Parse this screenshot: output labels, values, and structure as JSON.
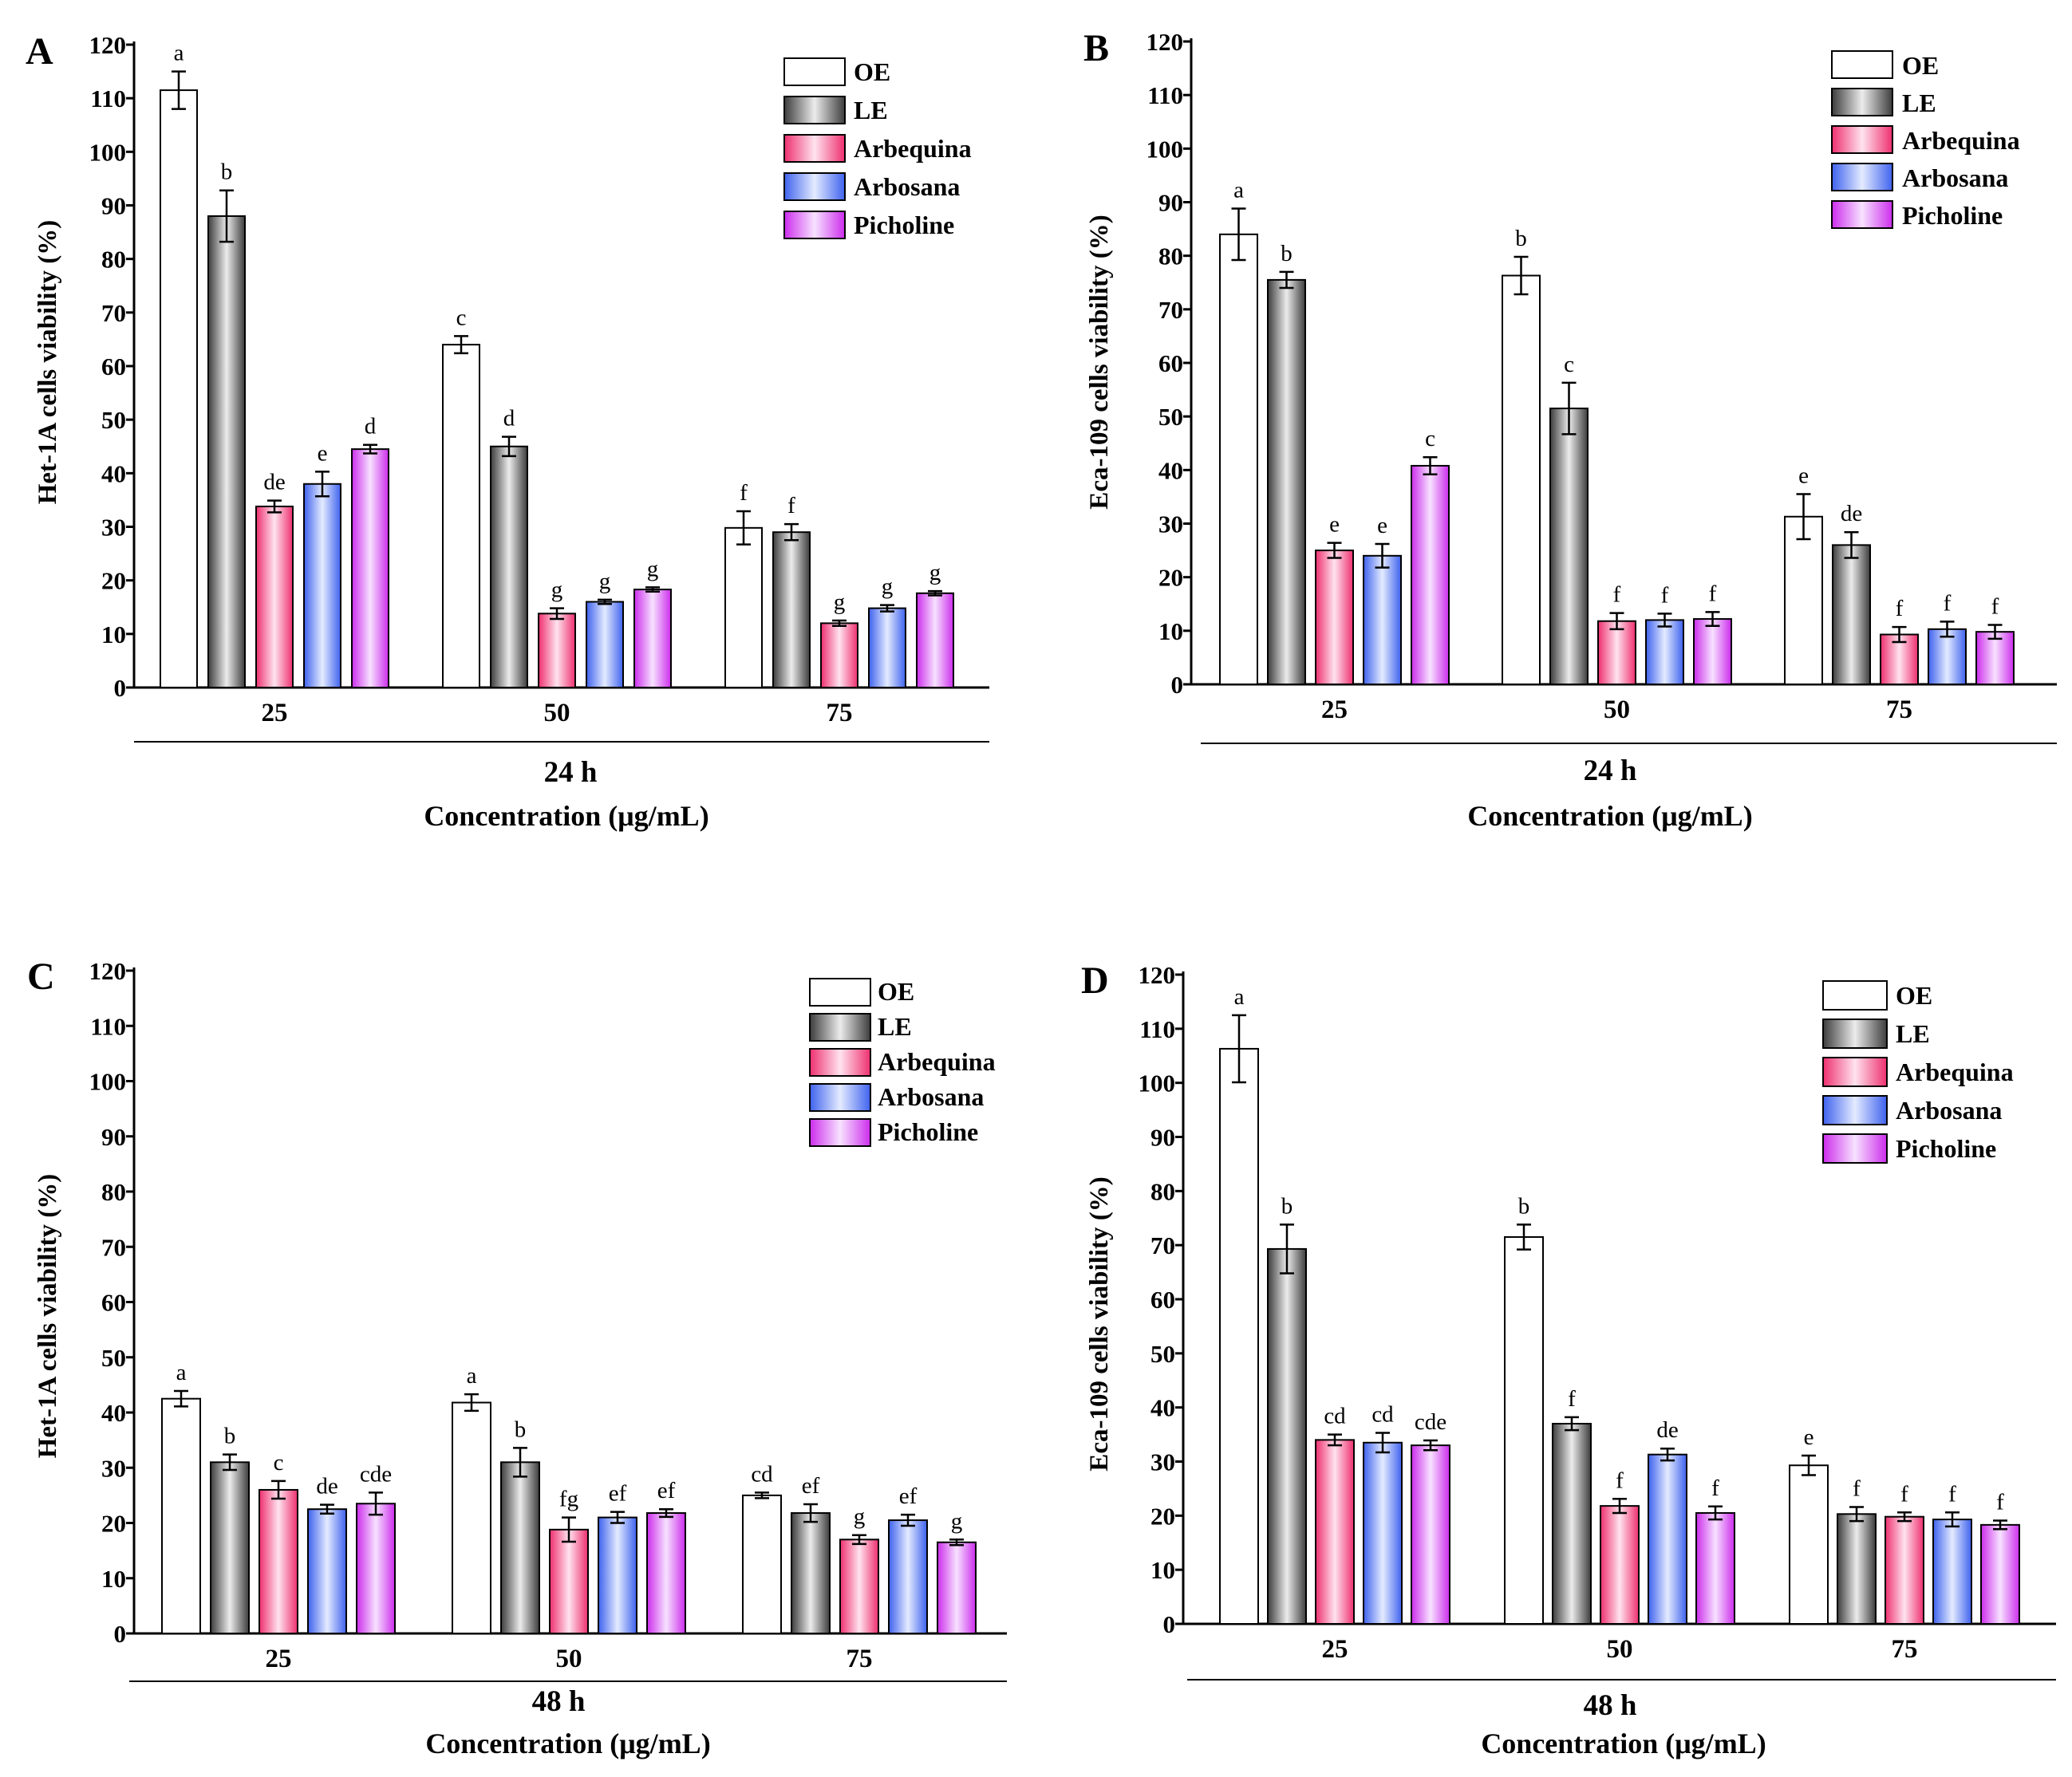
{
  "series_names": [
    "OE",
    "LE",
    "Arbequina",
    "Arbosana",
    "Picholine"
  ],
  "series_colors": {
    "OE": {
      "dark": "#ffffff",
      "light": "#ffffff"
    },
    "LE": {
      "dark": "#3c3c3c",
      "light": "#ececec"
    },
    "Arbequina": {
      "dark": "#ee2f6f",
      "light": "#ffe3ee"
    },
    "Arbosana": {
      "dark": "#3e62ee",
      "light": "#e4ebff"
    },
    "Picholine": {
      "dark": "#cc2cec",
      "light": "#f7e2ff"
    }
  },
  "chart_data": [
    {
      "panel": "A",
      "type": "bar",
      "ylabel": "Het-1A cells viability (%)",
      "time_label": "24 h",
      "xlabel": "Concentration (μg/mL)",
      "ylim": [
        0,
        120
      ],
      "yticks": [
        0,
        10,
        20,
        30,
        40,
        50,
        60,
        70,
        80,
        90,
        100,
        110,
        120
      ],
      "categories": [
        "25",
        "50",
        "75"
      ],
      "series": [
        {
          "name": "OE",
          "values": [
            111.5,
            64,
            29.8
          ],
          "errors": [
            3.5,
            1.6,
            3.1
          ],
          "letters": [
            "a",
            "c",
            "f"
          ]
        },
        {
          "name": "LE",
          "values": [
            88,
            45,
            29
          ],
          "errors": [
            4.8,
            1.8,
            1.5
          ],
          "letters": [
            "b",
            "d",
            "f"
          ]
        },
        {
          "name": "Arbequina",
          "values": [
            33.8,
            13.8,
            12
          ],
          "errors": [
            1.1,
            1.0,
            0.5
          ],
          "letters": [
            "de",
            "g",
            "g"
          ]
        },
        {
          "name": "Arbosana",
          "values": [
            38,
            16,
            14.8
          ],
          "errors": [
            2.3,
            0.4,
            0.6
          ],
          "letters": [
            "e",
            "g",
            "g"
          ]
        },
        {
          "name": "Picholine",
          "values": [
            44.5,
            18.3,
            17.6
          ],
          "errors": [
            0.8,
            0.4,
            0.4
          ],
          "letters": [
            "d",
            "g",
            "g"
          ]
        }
      ]
    },
    {
      "panel": "B",
      "type": "bar",
      "ylabel": "Eca-109 cells viability (%)",
      "time_label": "24 h",
      "xlabel": "Concentration (μg/mL)",
      "ylim": [
        0,
        120
      ],
      "yticks": [
        0,
        10,
        20,
        30,
        40,
        50,
        60,
        70,
        80,
        90,
        100,
        110,
        120
      ],
      "categories": [
        "25",
        "50",
        "75"
      ],
      "series": [
        {
          "name": "OE",
          "values": [
            84,
            76.3,
            31.3
          ],
          "errors": [
            4.8,
            3.5,
            4.2
          ],
          "letters": [
            "a",
            "b",
            "e"
          ]
        },
        {
          "name": "LE",
          "values": [
            75.5,
            51.5,
            26
          ],
          "errors": [
            1.5,
            4.8,
            2.4
          ],
          "letters": [
            "b",
            "c",
            "de"
          ]
        },
        {
          "name": "Arbequina",
          "values": [
            25,
            11.8,
            9.3
          ],
          "errors": [
            1.4,
            1.5,
            1.4
          ],
          "letters": [
            "e",
            "f",
            "f"
          ]
        },
        {
          "name": "Arbosana",
          "values": [
            24,
            12,
            10.3
          ],
          "errors": [
            2.2,
            1.2,
            1.4
          ],
          "letters": [
            "e",
            "f",
            "f"
          ]
        },
        {
          "name": "Picholine",
          "values": [
            40.8,
            12.2,
            9.8
          ],
          "errors": [
            1.6,
            1.3,
            1.3
          ],
          "letters": [
            "c",
            "f",
            "f"
          ]
        }
      ]
    },
    {
      "panel": "C",
      "type": "bar",
      "ylabel": "Het-1A cells viability (%)",
      "time_label": "48 h",
      "xlabel": "Concentration (μg/mL)",
      "ylim": [
        0,
        120
      ],
      "yticks": [
        0,
        10,
        20,
        30,
        40,
        50,
        60,
        70,
        80,
        90,
        100,
        110,
        120
      ],
      "categories": [
        "25",
        "50",
        "75"
      ],
      "series": [
        {
          "name": "OE",
          "values": [
            42.5,
            41.8,
            25
          ],
          "errors": [
            1.4,
            1.5,
            0.5
          ],
          "letters": [
            "a",
            "a",
            "cd"
          ]
        },
        {
          "name": "LE",
          "values": [
            31,
            31,
            21.8
          ],
          "errors": [
            1.4,
            2.6,
            1.6
          ],
          "letters": [
            "b",
            "b",
            "ef"
          ]
        },
        {
          "name": "Arbequina",
          "values": [
            26,
            18.8,
            17
          ],
          "errors": [
            1.6,
            2.2,
            0.8
          ],
          "letters": [
            "c",
            "fg",
            "g"
          ]
        },
        {
          "name": "Arbosana",
          "values": [
            22.5,
            21,
            20.5
          ],
          "errors": [
            0.8,
            1.0,
            1.0
          ],
          "letters": [
            "de",
            "ef",
            "ef"
          ]
        },
        {
          "name": "Picholine",
          "values": [
            23.5,
            21.8,
            16.5
          ],
          "errors": [
            2.0,
            0.7,
            0.5
          ],
          "letters": [
            "cde",
            "ef",
            "g"
          ]
        }
      ]
    },
    {
      "panel": "D",
      "type": "bar",
      "ylabel": "Eca-109 cells viability (%)",
      "time_label": "48 h",
      "xlabel": "Concentration (μg/mL)",
      "ylim": [
        0,
        120
      ],
      "yticks": [
        0,
        10,
        20,
        30,
        40,
        50,
        60,
        70,
        80,
        90,
        100,
        110,
        120
      ],
      "categories": [
        "25",
        "50",
        "75"
      ],
      "series": [
        {
          "name": "OE",
          "values": [
            106.3,
            71.5,
            29.3
          ],
          "errors": [
            6.2,
            2.3,
            1.8
          ],
          "letters": [
            "a",
            "b",
            "e"
          ]
        },
        {
          "name": "LE",
          "values": [
            69.3,
            37,
            20.3
          ],
          "errors": [
            4.5,
            1.2,
            1.3
          ],
          "letters": [
            "b",
            "f",
            "f"
          ]
        },
        {
          "name": "Arbequina",
          "values": [
            34,
            21.8,
            19.8
          ],
          "errors": [
            1.0,
            1.3,
            0.8
          ],
          "letters": [
            "cd",
            "f",
            "f"
          ]
        },
        {
          "name": "Arbosana",
          "values": [
            33.5,
            31.3,
            19.3
          ],
          "errors": [
            1.8,
            1.1,
            1.3
          ],
          "letters": [
            "cd",
            "de",
            "f"
          ]
        },
        {
          "name": "Picholine",
          "values": [
            33,
            20.5,
            18.3
          ],
          "errors": [
            0.9,
            1.2,
            0.8
          ],
          "letters": [
            "cde",
            "f",
            "f"
          ]
        }
      ]
    }
  ]
}
